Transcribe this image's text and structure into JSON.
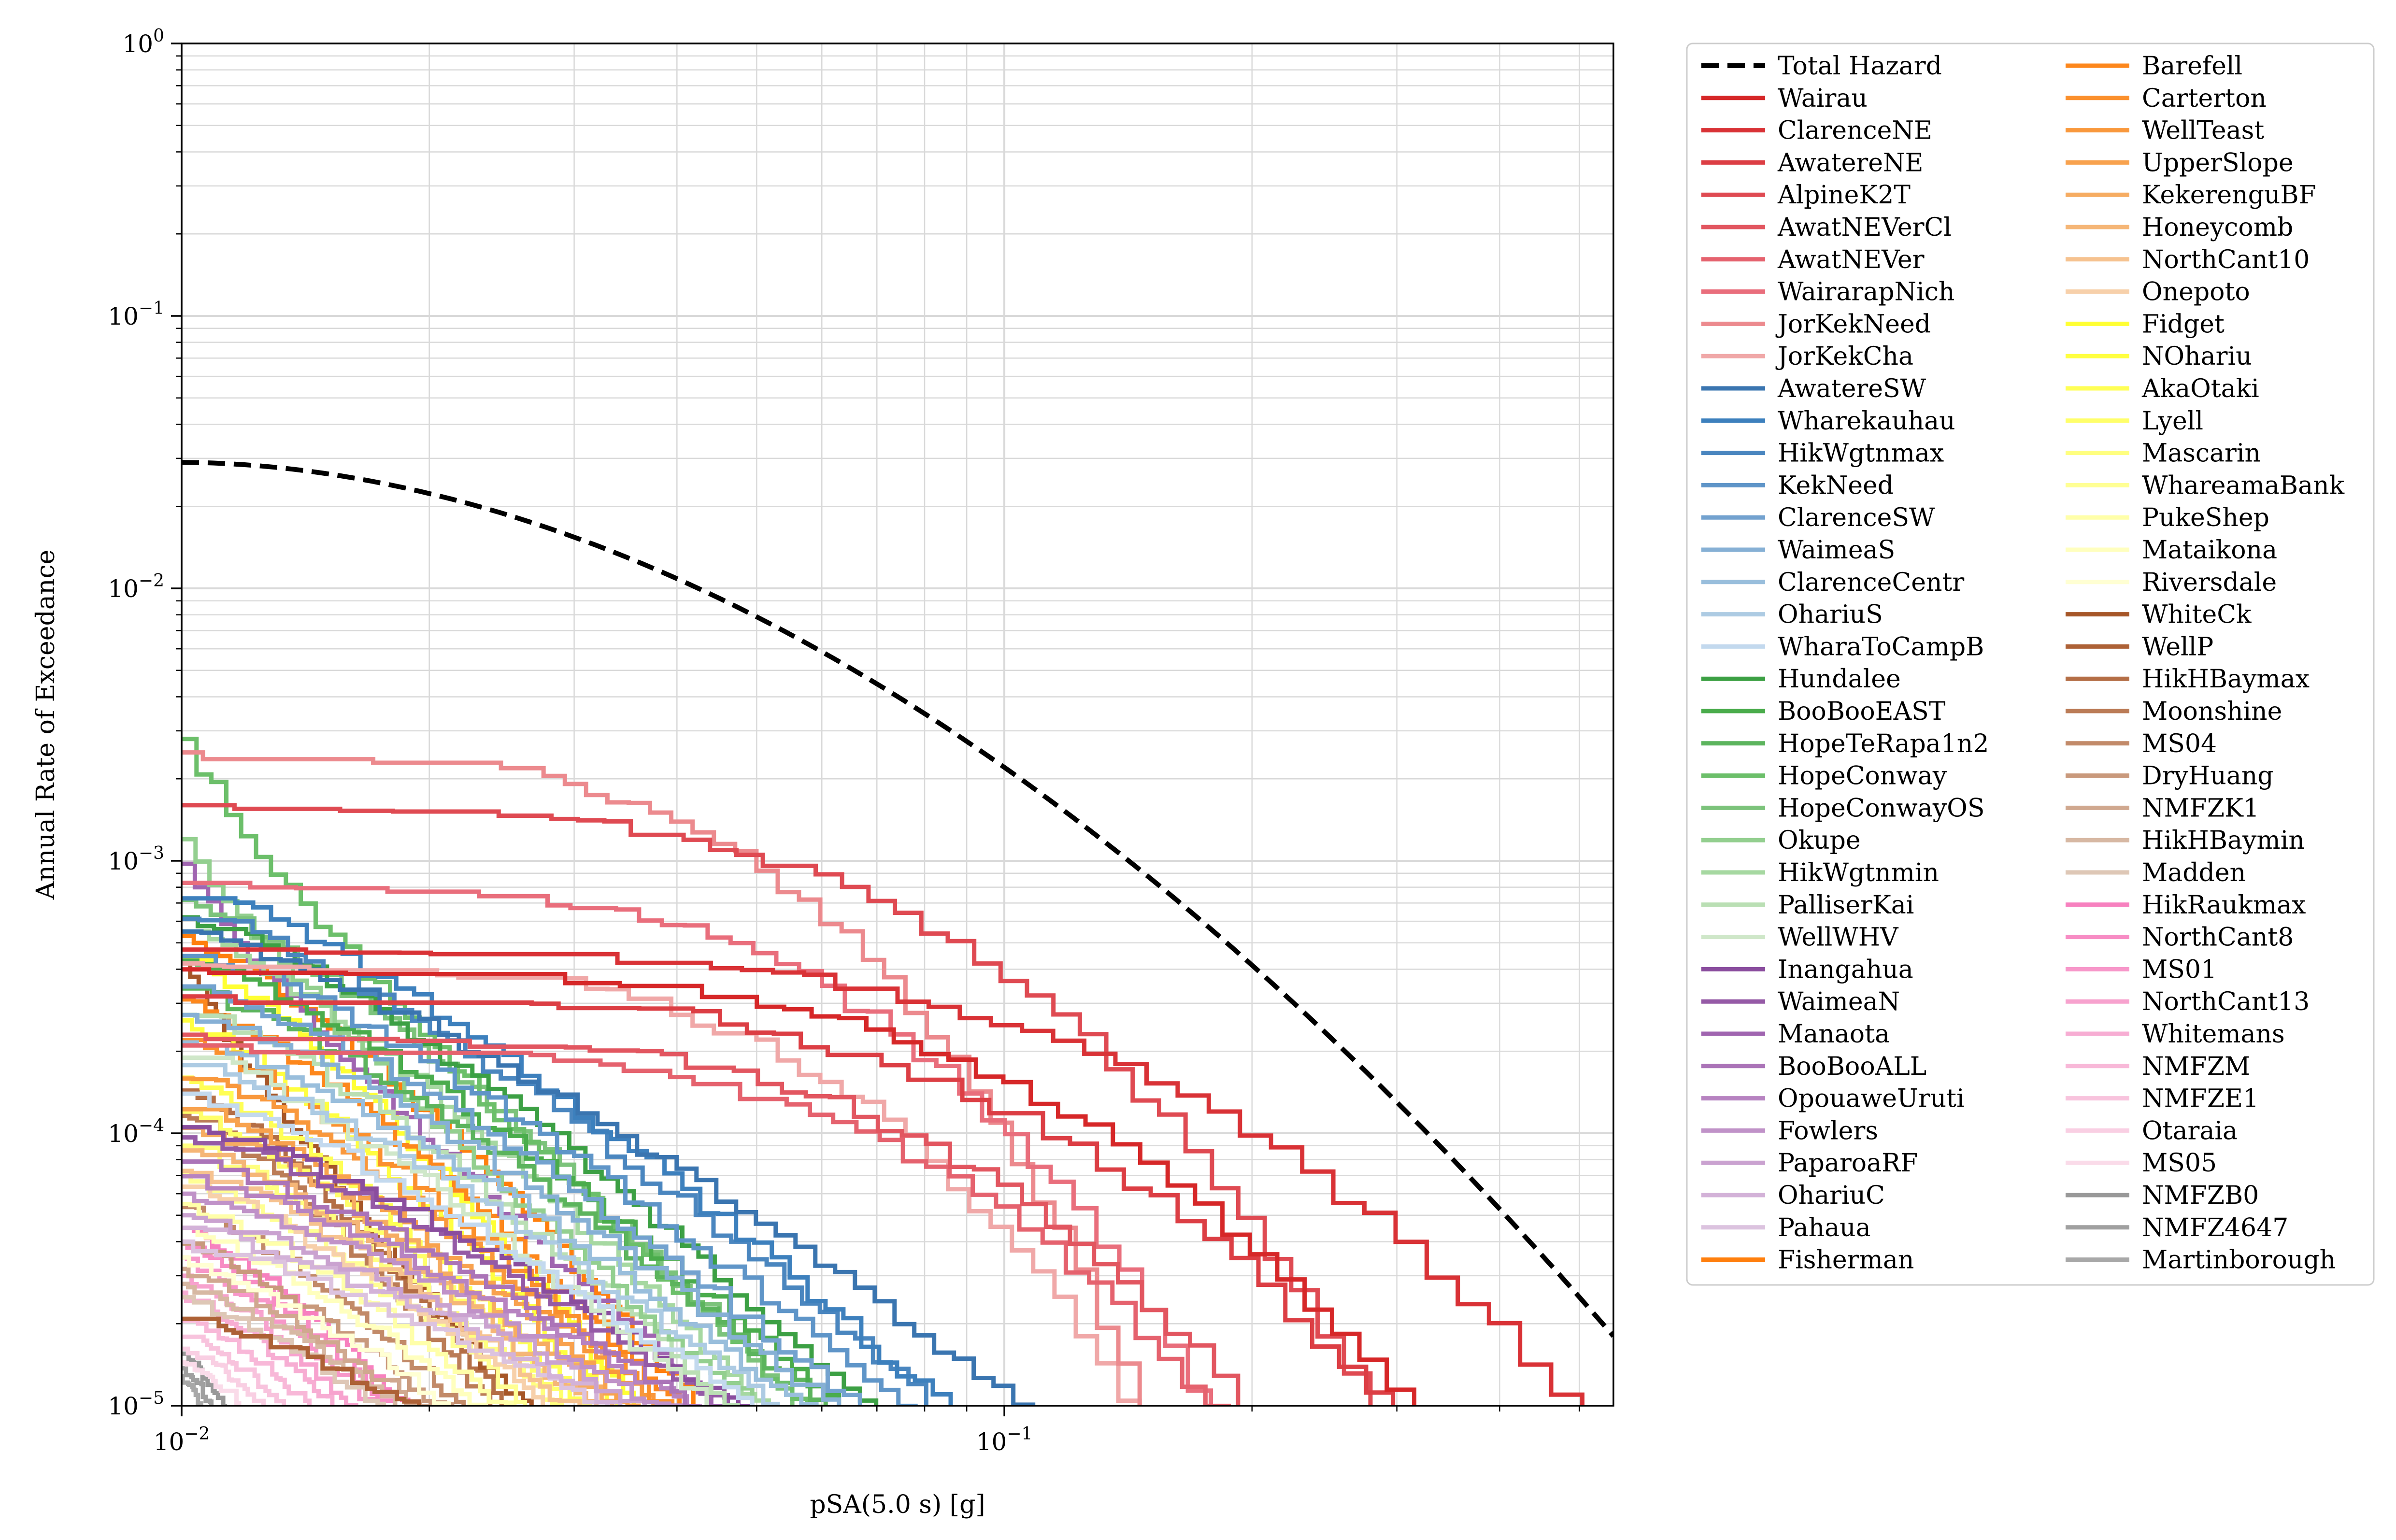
{
  "chart_data": {
    "type": "line",
    "title": "",
    "xlabel": "pSA(5.0 s) [g]",
    "ylabel": "Annual Rate of Exceedance",
    "xscale": "log",
    "yscale": "log",
    "xlim": [
      0.01,
      0.55
    ],
    "ylim": [
      1e-05,
      1
    ],
    "grid": true,
    "legend_position": "outside-right",
    "legend_columns": 2,
    "x_ticks": [
      {
        "value": 0.01,
        "base": "10",
        "exp": "−2"
      },
      {
        "value": 0.1,
        "base": "10",
        "exp": "−1"
      }
    ],
    "y_ticks": [
      {
        "value": 1,
        "base": "10",
        "exp": "0"
      },
      {
        "value": 0.1,
        "base": "10",
        "exp": "−1"
      },
      {
        "value": 0.01,
        "base": "10",
        "exp": "−2"
      },
      {
        "value": 0.001,
        "base": "10",
        "exp": "−3"
      },
      {
        "value": 0.0001,
        "base": "10",
        "exp": "−4"
      },
      {
        "value": 1e-05,
        "base": "10",
        "exp": "−5"
      }
    ],
    "series": [
      {
        "name": "Total Hazard",
        "color": "#000000",
        "dashed": true,
        "y0": 0.029,
        "x_end": 0.55,
        "shape": "total"
      },
      {
        "name": "Wairau",
        "color": "#d62728",
        "y0": 0.00041,
        "x_end": 0.34,
        "shape": "plateau"
      },
      {
        "name": "ClarenceNE",
        "color": "#d93236",
        "y0": 0.00048,
        "x_end": 0.55,
        "shape": "plateau"
      },
      {
        "name": "AwatereNE",
        "color": "#dc3e44",
        "y0": 0.00032,
        "x_end": 0.32,
        "shape": "plateau"
      },
      {
        "name": "AlpineK2T",
        "color": "#df4a52",
        "y0": 0.0016,
        "x_end": 0.3,
        "shape": "plateau"
      },
      {
        "name": "AwatNEVerCl",
        "color": "#e25660",
        "y0": 0.00023,
        "x_end": 0.22,
        "shape": "plateau"
      },
      {
        "name": "AwatNEVer",
        "color": "#e5626e",
        "y0": 0.00021,
        "x_end": 0.2,
        "shape": "plateau"
      },
      {
        "name": "WairarapNich",
        "color": "#e96e7c",
        "y0": 0.00083,
        "x_end": 0.19,
        "shape": "plateau"
      },
      {
        "name": "JorKekNeed",
        "color": "#ec8a8e",
        "y0": 0.0025,
        "x_end": 0.155,
        "shape": "plateau"
      },
      {
        "name": "JorKekCha",
        "color": "#f0a8a8",
        "y0": 0.00042,
        "x_end": 0.155,
        "shape": "plateau"
      },
      {
        "name": "AwatereSW",
        "color": "#3a75b0",
        "y0": 0.00055,
        "x_end": 0.128,
        "shape": "mid"
      },
      {
        "name": "Wharekauhau",
        "color": "#3d80bd",
        "y0": 0.00078,
        "x_end": 0.1,
        "shape": "mid"
      },
      {
        "name": "HikWgtnmax",
        "color": "#4a86bf",
        "y0": 0.00065,
        "x_end": 0.098,
        "shape": "mid"
      },
      {
        "name": "KekNeed",
        "color": "#5f95c8",
        "y0": 0.00047,
        "x_end": 0.09,
        "shape": "mid"
      },
      {
        "name": "ClarenceSW",
        "color": "#73a2cf",
        "y0": 0.00036,
        "x_end": 0.08,
        "shape": "mid"
      },
      {
        "name": "WaimeaS",
        "color": "#86b0d5",
        "y0": 0.00028,
        "x_end": 0.075,
        "shape": "mid"
      },
      {
        "name": "ClarenceCentr",
        "color": "#99bedc",
        "y0": 0.00022,
        "x_end": 0.07,
        "shape": "mid"
      },
      {
        "name": "OhariuS",
        "color": "#adcbe3",
        "y0": 0.00018,
        "x_end": 0.065,
        "shape": "mid"
      },
      {
        "name": "WharaToCampB",
        "color": "#c3d9ee",
        "y0": 0.00014,
        "x_end": 0.06,
        "shape": "mid"
      },
      {
        "name": "Hundalee",
        "color": "#3ca044",
        "y0": 0.00062,
        "x_end": 0.08,
        "shape": "mid"
      },
      {
        "name": "BooBooEAST",
        "color": "#4aac4c",
        "y0": 0.00043,
        "x_end": 0.075,
        "shape": "mid"
      },
      {
        "name": "HopeTeRapa1n2",
        "color": "#5cb45d",
        "y0": 0.00034,
        "x_end": 0.072,
        "shape": "mid"
      },
      {
        "name": "HopeConway",
        "color": "#6cbf6a",
        "y0": 0.0028,
        "x_end": 0.068,
        "shape": "steep"
      },
      {
        "name": "HopeConwayOS",
        "color": "#7cc37b",
        "y0": 0.00072,
        "x_end": 0.065,
        "shape": "mid"
      },
      {
        "name": "Okupe",
        "color": "#93cf8f",
        "y0": 0.0012,
        "x_end": 0.06,
        "shape": "steep"
      },
      {
        "name": "HikWgtnmin",
        "color": "#a6d8a1",
        "y0": 0.00055,
        "x_end": 0.058,
        "shape": "mid"
      },
      {
        "name": "PalliserKai",
        "color": "#badfb4",
        "y0": 0.00029,
        "x_end": 0.055,
        "shape": "mid"
      },
      {
        "name": "WellWHV",
        "color": "#cfe7c9",
        "y0": 0.0002,
        "x_end": 0.052,
        "shape": "mid"
      },
      {
        "name": "Inangahua",
        "color": "#8a4d9e",
        "y0": 0.00011,
        "x_end": 0.06,
        "shape": "low"
      },
      {
        "name": "WaimeaN",
        "color": "#955aa6",
        "y0": 0.0001,
        "x_end": 0.058,
        "shape": "low"
      },
      {
        "name": "Manaota",
        "color": "#a065b0",
        "y0": 0.001,
        "x_end": 0.055,
        "shape": "steep"
      },
      {
        "name": "BooBooALL",
        "color": "#ab74b8",
        "y0": 8e-05,
        "x_end": 0.055,
        "shape": "low"
      },
      {
        "name": "OpouaweUruti",
        "color": "#b783c1",
        "y0": 7e-05,
        "x_end": 0.053,
        "shape": "low"
      },
      {
        "name": "Fowlers",
        "color": "#c092c8",
        "y0": 6e-05,
        "x_end": 0.05,
        "shape": "low"
      },
      {
        "name": "PaparoaRF",
        "color": "#caa2d0",
        "y0": 5e-05,
        "x_end": 0.048,
        "shape": "low"
      },
      {
        "name": "OhariuC",
        "color": "#d3b2d8",
        "y0": 4.5e-05,
        "x_end": 0.046,
        "shape": "low"
      },
      {
        "name": "Pahaua",
        "color": "#dcc3df",
        "y0": 4e-05,
        "x_end": 0.044,
        "shape": "low"
      },
      {
        "name": "Fisherman",
        "color": "#ff7f0e",
        "y0": 0.00053,
        "x_end": 0.048,
        "shape": "mid"
      },
      {
        "name": "Barefell",
        "color": "#fd871c",
        "y0": 0.00031,
        "x_end": 0.046,
        "shape": "mid"
      },
      {
        "name": "Carterton",
        "color": "#fb902d",
        "y0": 0.00022,
        "x_end": 0.045,
        "shape": "mid"
      },
      {
        "name": "WellTeast",
        "color": "#f9983c",
        "y0": 0.00017,
        "x_end": 0.044,
        "shape": "mid"
      },
      {
        "name": "UpperSlope",
        "color": "#f8a24e",
        "y0": 0.00013,
        "x_end": 0.042,
        "shape": "low"
      },
      {
        "name": "KekerenguBF",
        "color": "#f6ac62",
        "y0": 0.00011,
        "x_end": 0.04,
        "shape": "low"
      },
      {
        "name": "Honeycomb",
        "color": "#f5b677",
        "y0": 9e-05,
        "x_end": 0.038,
        "shape": "low"
      },
      {
        "name": "NorthCant10",
        "color": "#f6c28f",
        "y0": 7.5e-05,
        "x_end": 0.036,
        "shape": "low"
      },
      {
        "name": "Onepoto",
        "color": "#f7d0aa",
        "y0": 6.5e-05,
        "x_end": 0.034,
        "shape": "low"
      },
      {
        "name": "Fidget",
        "color": "#ffff33",
        "y0": 0.00044,
        "x_end": 0.04,
        "shape": "mid"
      },
      {
        "name": "NOhariu",
        "color": "#ffff40",
        "y0": 0.00026,
        "x_end": 0.038,
        "shape": "mid"
      },
      {
        "name": "AkaOtaki",
        "color": "#ffff55",
        "y0": 0.00016,
        "x_end": 0.036,
        "shape": "low"
      },
      {
        "name": "Lyell",
        "color": "#ffff6a",
        "y0": 0.00012,
        "x_end": 0.035,
        "shape": "low"
      },
      {
        "name": "Mascarin",
        "color": "#ffff7f",
        "y0": 9e-05,
        "x_end": 0.034,
        "shape": "low"
      },
      {
        "name": "WhareamaBank",
        "color": "#ffff94",
        "y0": 7e-05,
        "x_end": 0.032,
        "shape": "low"
      },
      {
        "name": "PukeShep",
        "color": "#ffffa9",
        "y0": 5.5e-05,
        "x_end": 0.03,
        "shape": "low"
      },
      {
        "name": "Mataikona",
        "color": "#ffffbe",
        "y0": 4.5e-05,
        "x_end": 0.028,
        "shape": "low"
      },
      {
        "name": "Riversdale",
        "color": "#ffffd3",
        "y0": 3.5e-05,
        "x_end": 0.026,
        "shape": "low"
      },
      {
        "name": "WhiteCk",
        "color": "#a65628",
        "y0": 0.00045,
        "x_end": 0.03,
        "shape": "steep"
      },
      {
        "name": "WellP",
        "color": "#ad6136",
        "y0": 2.2e-05,
        "x_end": 0.026,
        "shape": "low"
      },
      {
        "name": "HikHBaymax",
        "color": "#b46e46",
        "y0": 0.00015,
        "x_end": 0.028,
        "shape": "low"
      },
      {
        "name": "Moonshine",
        "color": "#bb7c57",
        "y0": 0.00012,
        "x_end": 0.027,
        "shape": "low"
      },
      {
        "name": "MS04",
        "color": "#c28a69",
        "y0": 5.5e-05,
        "x_end": 0.026,
        "shape": "low"
      },
      {
        "name": "DryHuang",
        "color": "#c9997c",
        "y0": 4e-05,
        "x_end": 0.025,
        "shape": "low"
      },
      {
        "name": "NMFZK1",
        "color": "#d0a88f",
        "y0": 3.2e-05,
        "x_end": 0.024,
        "shape": "low"
      },
      {
        "name": "HikHBaymin",
        "color": "#d7b8a3",
        "y0": 2.8e-05,
        "x_end": 0.023,
        "shape": "low"
      },
      {
        "name": "Madden",
        "color": "#dec7b6",
        "y0": 2.5e-05,
        "x_end": 0.022,
        "shape": "low"
      },
      {
        "name": "HikRaukmax",
        "color": "#f781bf",
        "y0": 4.5e-05,
        "x_end": 0.022,
        "shape": "low"
      },
      {
        "name": "NorthCant8",
        "color": "#f78cc4",
        "y0": 4e-05,
        "x_end": 0.021,
        "shape": "low"
      },
      {
        "name": "MS01",
        "color": "#f797c9",
        "y0": 3.5e-05,
        "x_end": 0.02,
        "shape": "low"
      },
      {
        "name": "NorthCant13",
        "color": "#f7a2ce",
        "y0": 3e-05,
        "x_end": 0.019,
        "shape": "low"
      },
      {
        "name": "Whitemans",
        "color": "#f7add3",
        "y0": 2.6e-05,
        "x_end": 0.018,
        "shape": "low"
      },
      {
        "name": "NMFZM",
        "color": "#f8b8d8",
        "y0": 2.2e-05,
        "x_end": 0.017,
        "shape": "low"
      },
      {
        "name": "NMFZE1",
        "color": "#f8c3dd",
        "y0": 1.9e-05,
        "x_end": 0.016,
        "shape": "low"
      },
      {
        "name": "Otaraia",
        "color": "#f9cfe3",
        "y0": 1.7e-05,
        "x_end": 0.015,
        "shape": "low"
      },
      {
        "name": "MS05",
        "color": "#fadbe9",
        "y0": 1.5e-05,
        "x_end": 0.014,
        "shape": "low"
      },
      {
        "name": "NMFZB0",
        "color": "#999999",
        "y0": 1.6e-05,
        "x_end": 0.0125,
        "shape": "low"
      },
      {
        "name": "NMFZ4647",
        "color": "#a0a0a0",
        "y0": 1.4e-05,
        "x_end": 0.012,
        "shape": "low"
      },
      {
        "name": "Martinborough",
        "color": "#a8a8a8",
        "y0": 1.3e-05,
        "x_end": 0.0115,
        "shape": "low"
      }
    ]
  }
}
